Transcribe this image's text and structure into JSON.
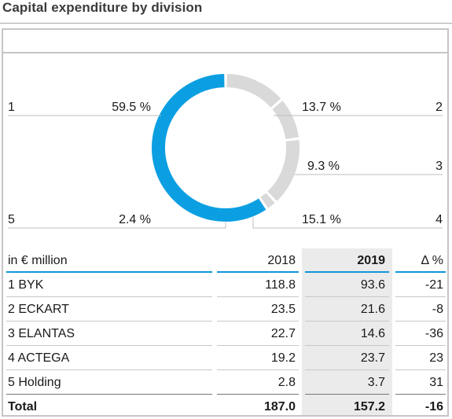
{
  "title": "Capital expenditure by division",
  "chart_data": {
    "type": "pie",
    "style": "donut",
    "segments": [
      {
        "id": "1",
        "name": "BYK",
        "percent": 59.5,
        "percent_label": "59.5 %",
        "color": "#0b9fe2"
      },
      {
        "id": "2",
        "name": "ECKART",
        "percent": 13.7,
        "percent_label": "13.7 %",
        "color": "#d9d9d9"
      },
      {
        "id": "3",
        "name": "ELANTAS",
        "percent": 9.3,
        "percent_label": "9.3 %",
        "color": "#d9d9d9"
      },
      {
        "id": "4",
        "name": "ACTEGA",
        "percent": 15.1,
        "percent_label": "15.1 %",
        "color": "#d9d9d9"
      },
      {
        "id": "5",
        "name": "Holding",
        "percent": 2.4,
        "percent_label": "2.4 %",
        "color": "#d9d9d9"
      }
    ]
  },
  "table": {
    "header": {
      "label": "in € million",
      "y2018": "2018",
      "y2019": "2019",
      "delta": "Δ %"
    },
    "rows": [
      {
        "name": "1 BYK",
        "y2018": "118.8",
        "y2019": "93.6",
        "delta": "-21"
      },
      {
        "name": "2 ECKART",
        "y2018": "23.5",
        "y2019": "21.6",
        "delta": "-8"
      },
      {
        "name": "3 ELANTAS",
        "y2018": "22.7",
        "y2019": "14.6",
        "delta": "-36"
      },
      {
        "name": "4 ACTEGA",
        "y2018": "19.2",
        "y2019": "23.7",
        "delta": "23"
      },
      {
        "name": "5 Holding",
        "y2018": "2.8",
        "y2019": "3.7",
        "delta": "31"
      }
    ],
    "total": {
      "name": "Total",
      "y2018": "187.0",
      "y2019": "157.2",
      "delta": "-16"
    }
  }
}
